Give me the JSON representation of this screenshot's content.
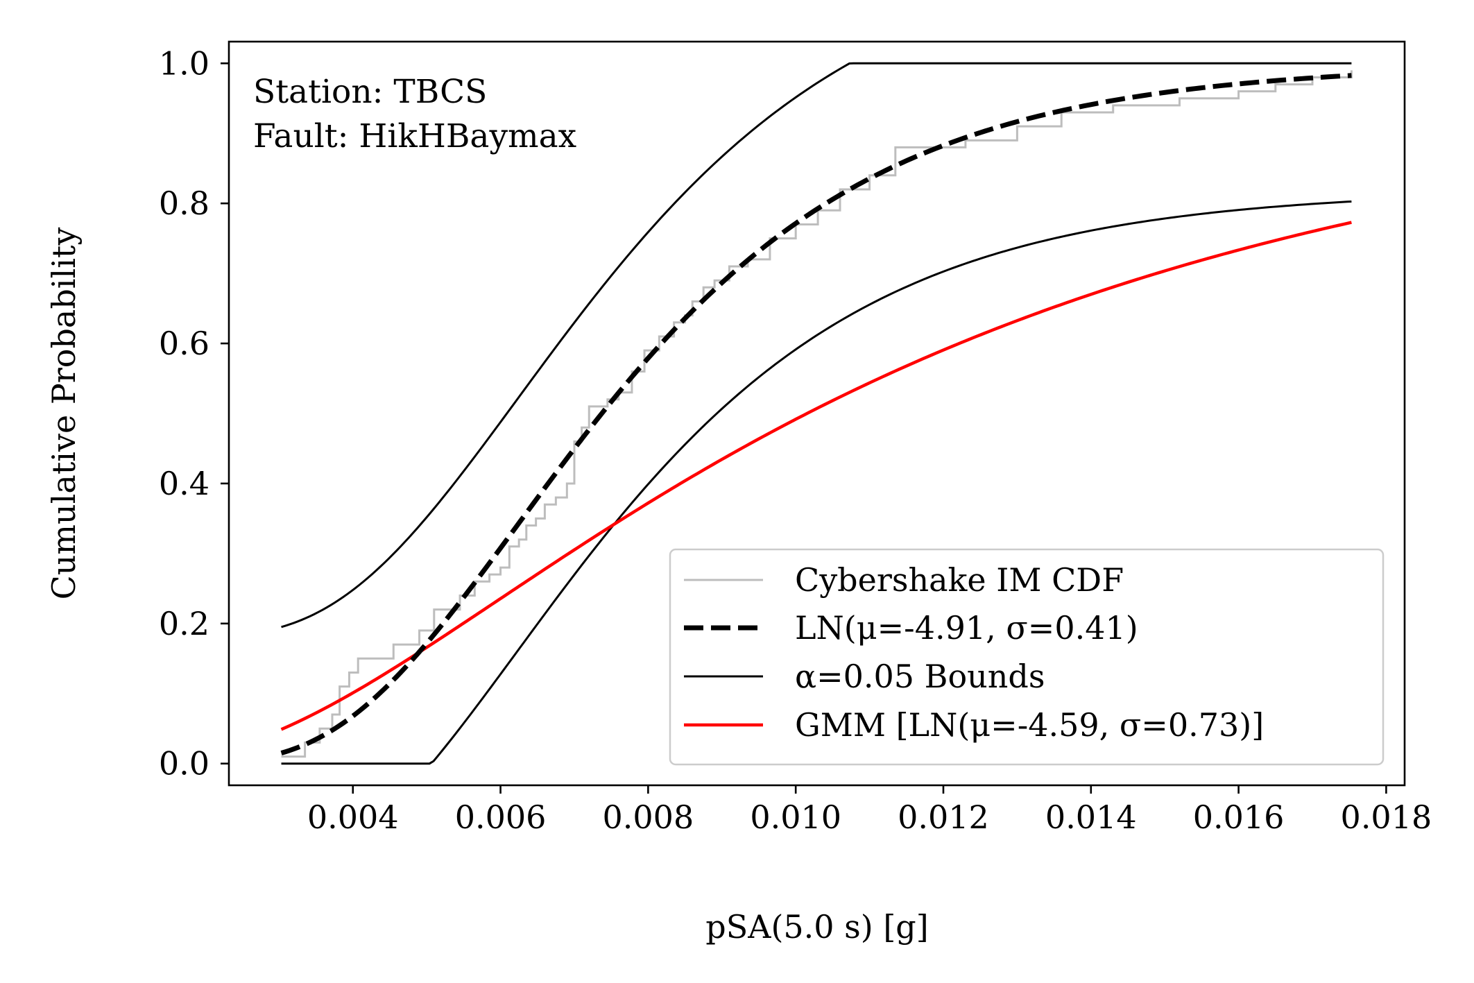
{
  "chart_data": {
    "type": "line",
    "xlabel": "pSA(5.0 s) [g]",
    "ylabel": "Cumulative Probability",
    "xlim": [
      0.00232,
      0.01825
    ],
    "ylim": [
      -0.031,
      1.031
    ],
    "xticks": [
      0.004,
      0.006,
      0.008,
      0.01,
      0.012,
      0.014,
      0.016,
      0.018
    ],
    "xtick_labels": [
      "0.004",
      "0.006",
      "0.008",
      "0.010",
      "0.012",
      "0.014",
      "0.016",
      "0.018"
    ],
    "yticks": [
      0.0,
      0.2,
      0.4,
      0.6,
      0.8,
      1.0
    ],
    "ytick_labels": [
      "0.0",
      "0.2",
      "0.4",
      "0.6",
      "0.8",
      "1.0"
    ],
    "grid": false,
    "legend_position": "lower-right",
    "annotation": [
      "Station: TBCS",
      "Fault: HikHBaymax"
    ],
    "x_range": [
      0.00303,
      0.01753
    ],
    "series": [
      {
        "name": "Cybershake IM CDF",
        "kind": "step",
        "color": "#bdbdbd",
        "x": [
          0.00303,
          0.00335,
          0.00355,
          0.00372,
          0.00382,
          0.00395,
          0.00407,
          0.00423,
          0.00455,
          0.0049,
          0.0051,
          0.00545,
          0.00565,
          0.00585,
          0.006,
          0.00612,
          0.00625,
          0.00635,
          0.00648,
          0.0066,
          0.00675,
          0.0069,
          0.007,
          0.0071,
          0.0072,
          0.00745,
          0.0076,
          0.00778,
          0.00795,
          0.00815,
          0.00835,
          0.0085,
          0.0086,
          0.00875,
          0.0089,
          0.0091,
          0.00935,
          0.00965,
          0.01,
          0.0103,
          0.0106,
          0.011,
          0.01135,
          0.01185,
          0.0123,
          0.013,
          0.0136,
          0.0143,
          0.0152,
          0.016,
          0.0165,
          0.017,
          0.01753
        ],
        "y": [
          0.01,
          0.03,
          0.05,
          0.07,
          0.11,
          0.13,
          0.15,
          0.15,
          0.17,
          0.19,
          0.22,
          0.24,
          0.26,
          0.27,
          0.28,
          0.31,
          0.32,
          0.34,
          0.35,
          0.37,
          0.38,
          0.4,
          0.46,
          0.48,
          0.51,
          0.52,
          0.53,
          0.56,
          0.59,
          0.61,
          0.63,
          0.64,
          0.66,
          0.68,
          0.69,
          0.71,
          0.72,
          0.75,
          0.77,
          0.79,
          0.82,
          0.84,
          0.88,
          0.88,
          0.89,
          0.91,
          0.93,
          0.94,
          0.95,
          0.96,
          0.97,
          0.98,
          0.99
        ]
      },
      {
        "name": "LN(μ=-4.91, σ=0.41)",
        "kind": "lognormal",
        "mu": -4.91,
        "sigma": 0.41,
        "color": "#000000",
        "dashed": true
      },
      {
        "name": "α=0.05 Bounds",
        "kind": "bounds",
        "mu": -4.91,
        "sigma": 0.41,
        "offset": 0.18,
        "color": "#000000"
      },
      {
        "name": "GMM [LN(μ=-4.59, σ=0.73)]",
        "kind": "lognormal",
        "mu": -4.59,
        "sigma": 0.73,
        "color": "#ff0000"
      }
    ]
  }
}
